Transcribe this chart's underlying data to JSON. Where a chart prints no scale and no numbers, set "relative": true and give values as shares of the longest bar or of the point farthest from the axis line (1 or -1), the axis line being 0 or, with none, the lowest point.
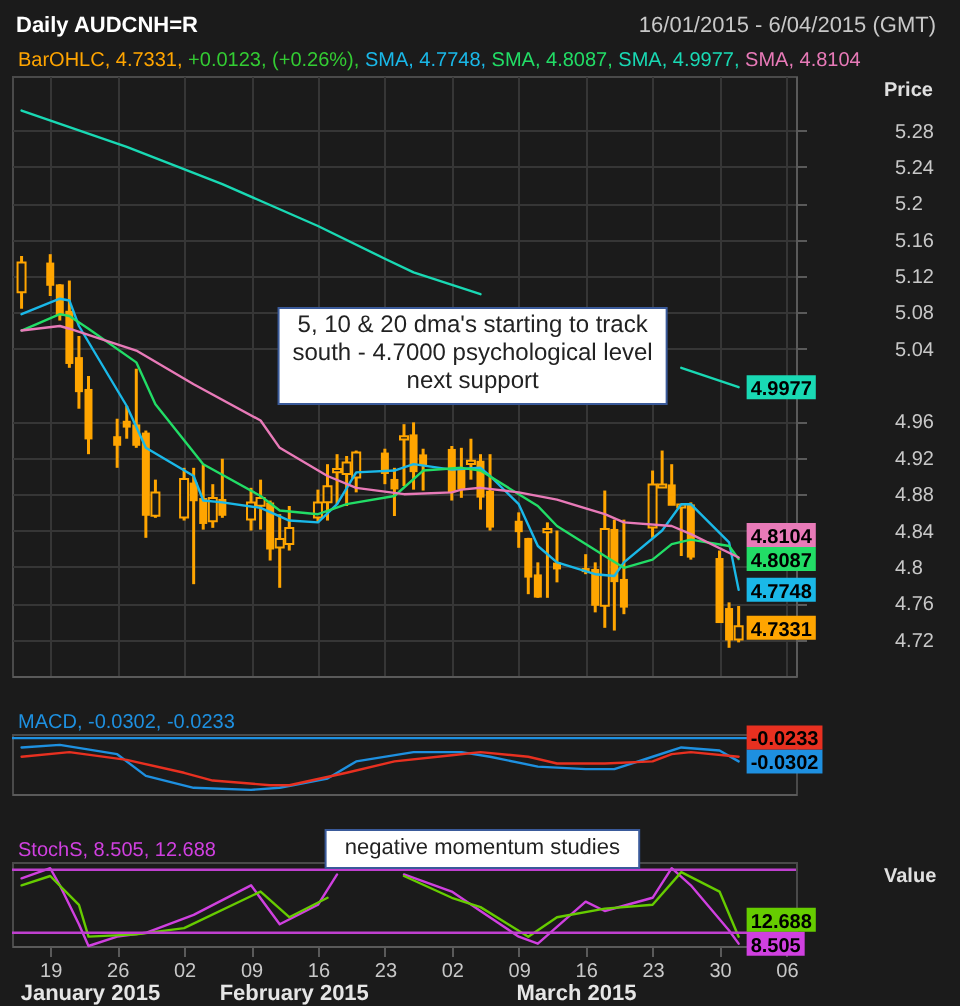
{
  "chart_data": [
    {
      "type": "candlestick",
      "title": "Daily AUDCNH=R",
      "subtitle": "16/01/2015 - 6/04/2015 (GMT)",
      "ylabel": "Price",
      "grid": true,
      "tick_labels": "y",
      "x": [
        "2015-01-16",
        "2015-01-19",
        "2015-01-20",
        "2015-01-21",
        "2015-01-22",
        "2015-01-23",
        "2015-01-26",
        "2015-01-27",
        "2015-01-28",
        "2015-01-29",
        "2015-01-30",
        "2015-02-02",
        "2015-02-03",
        "2015-02-04",
        "2015-02-05",
        "2015-02-06",
        "2015-02-09",
        "2015-02-10",
        "2015-02-11",
        "2015-02-12",
        "2015-02-13",
        "2015-02-16",
        "2015-02-17",
        "2015-02-18",
        "2015-02-19",
        "2015-02-20",
        "2015-02-23",
        "2015-02-24",
        "2015-02-25",
        "2015-02-26",
        "2015-02-27",
        "2015-03-02",
        "2015-03-03",
        "2015-03-04",
        "2015-03-05",
        "2015-03-06",
        "2015-03-09",
        "2015-03-10",
        "2015-03-11",
        "2015-03-12",
        "2015-03-13",
        "2015-03-16",
        "2015-03-17",
        "2015-03-18",
        "2015-03-19",
        "2015-03-20",
        "2015-03-23",
        "2015-03-24",
        "2015-03-25",
        "2015-03-26",
        "2015-03-27",
        "2015-03-30",
        "2015-03-31",
        "2015-04-01"
      ],
      "xlim": [
        "2015-01-15",
        "2015-04-07"
      ],
      "xticks": [
        {
          "value": "2015-01-19",
          "label": null
        },
        {
          "value": "2015-01-26",
          "label": null
        },
        {
          "value": "2015-02-02",
          "label": null
        },
        {
          "value": "2015-02-09",
          "label": null
        },
        {
          "value": "2015-02-16",
          "label": null
        },
        {
          "value": "2015-02-23",
          "label": null
        },
        {
          "value": "2015-03-02",
          "label": null
        },
        {
          "value": "2015-03-09",
          "label": null
        },
        {
          "value": "2015-03-16",
          "label": null
        },
        {
          "value": "2015-03-23",
          "label": null
        },
        {
          "value": "2015-03-30",
          "label": null
        },
        {
          "value": "2015-04-06",
          "label": null
        }
      ],
      "ylim": [
        4.68,
        5.34
      ],
      "yticks": [
        4.72,
        4.76,
        4.8,
        4.84,
        4.88,
        4.92,
        4.96,
        5.04,
        5.08,
        5.12,
        5.16,
        5.2,
        5.24,
        5.28
      ],
      "series": [
        {
          "type": "candlestick",
          "color": "#ffa500",
          "ohlc": [
            [
              5.104,
              5.142,
              5.084,
              5.133
            ],
            [
              5.133,
              5.144,
              5.098,
              5.111
            ],
            [
              5.109,
              5.111,
              5.071,
              5.078
            ],
            [
              5.08,
              5.115,
              5.019,
              5.025
            ],
            [
              5.029,
              5.054,
              4.974,
              4.994
            ],
            [
              4.994,
              5.01,
              4.924,
              4.942
            ],
            [
              4.942,
              4.963,
              4.909,
              4.935
            ],
            [
              4.959,
              4.977,
              4.941,
              4.955
            ],
            [
              4.955,
              5.018,
              4.931,
              4.935
            ],
            [
              4.946,
              4.95,
              4.832,
              4.858
            ],
            [
              4.858,
              4.896,
              4.854,
              4.88
            ],
            [
              4.856,
              4.909,
              4.851,
              4.895
            ],
            [
              4.891,
              4.909,
              4.781,
              4.874
            ],
            [
              4.874,
              4.913,
              4.841,
              4.849
            ],
            [
              4.852,
              4.891,
              4.843,
              4.874
            ],
            [
              4.873,
              4.919,
              4.854,
              4.858
            ],
            [
              4.854,
              4.887,
              4.84,
              4.869
            ],
            [
              4.869,
              4.896,
              4.841,
              4.874
            ],
            [
              4.869,
              4.873,
              4.807,
              4.821
            ],
            [
              4.823,
              4.858,
              4.777,
              4.829
            ],
            [
              4.827,
              4.867,
              4.818,
              4.841
            ],
            [
              4.856,
              4.885,
              4.849,
              4.869
            ],
            [
              4.873,
              4.913,
              4.851,
              4.887
            ],
            [
              4.906,
              4.924,
              4.869,
              4.906
            ],
            [
              4.904,
              4.922,
              4.867,
              4.913
            ],
            [
              4.9,
              4.928,
              4.882,
              4.924
            ],
            [
              4.924,
              4.93,
              4.891,
              4.904
            ],
            [
              4.895,
              4.909,
              4.856,
              4.887
            ],
            [
              4.942,
              4.957,
              4.889,
              4.942
            ],
            [
              4.944,
              4.959,
              4.885,
              4.906
            ],
            [
              4.922,
              4.93,
              4.884,
              4.913
            ],
            [
              4.928,
              4.933,
              4.873,
              4.884
            ],
            [
              4.906,
              4.931,
              4.876,
              4.887
            ],
            [
              4.915,
              4.941,
              4.896,
              4.915
            ],
            [
              4.915,
              4.924,
              4.863,
              4.878
            ],
            [
              4.882,
              4.924,
              4.84,
              4.845
            ],
            [
              4.849,
              4.86,
              4.821,
              4.84
            ],
            [
              4.83,
              4.832,
              4.77,
              4.79
            ],
            [
              4.79,
              4.805,
              4.766,
              4.768
            ],
            [
              4.84,
              4.849,
              4.766,
              4.84
            ],
            [
              4.803,
              4.84,
              4.783,
              4.799
            ],
            [
              4.797,
              4.814,
              4.792,
              4.796
            ],
            [
              4.796,
              4.805,
              4.75,
              4.759
            ],
            [
              4.759,
              4.884,
              4.733,
              4.84
            ],
            [
              4.84,
              4.852,
              4.73,
              4.785
            ],
            [
              4.785,
              4.852,
              4.748,
              4.757
            ],
            [
              4.845,
              4.906,
              4.832,
              4.889
            ],
            [
              4.889,
              4.928,
              4.887,
              4.889
            ],
            [
              4.889,
              4.913,
              4.869,
              4.869
            ],
            [
              4.867,
              4.869,
              4.812,
              4.867
            ],
            [
              4.867,
              4.871,
              4.808,
              4.812
            ],
            [
              4.808,
              4.818,
              4.739,
              4.74
            ],
            [
              4.753,
              4.761,
              4.711,
              4.7208
            ],
            [
              4.722,
              4.757,
              4.717,
              4.7331
            ]
          ]
        },
        {
          "type": "line",
          "color": "#1ab8e8",
          "x": [
            "2015-01-16",
            "2015-01-20",
            "2015-01-21",
            "2015-01-22",
            "2015-01-27",
            "2015-01-29",
            "2015-02-03",
            "2015-02-04",
            "2015-02-06",
            "2015-02-10",
            "2015-02-13",
            "2015-02-16",
            "2015-02-18",
            "2015-02-20",
            "2015-02-24",
            "2015-02-26",
            "2015-03-02",
            "2015-03-05",
            "2015-03-06",
            "2015-03-09",
            "2015-03-11",
            "2015-03-13",
            "2015-03-17",
            "2015-03-19",
            "2015-03-20",
            "2015-03-24",
            "2015-03-26",
            "2015-03-27",
            "2015-03-31",
            "2015-04-01"
          ],
          "values": [
            5.078,
            5.095,
            5.093,
            5.065,
            4.977,
            4.931,
            4.9,
            4.873,
            4.871,
            4.865,
            4.851,
            4.849,
            4.869,
            4.904,
            4.906,
            4.913,
            4.907,
            4.909,
            4.9,
            4.869,
            4.823,
            4.805,
            4.792,
            4.79,
            4.805,
            4.84,
            4.869,
            4.869,
            4.827,
            4.7748
          ]
        },
        {
          "type": "line",
          "color": "#22dd66",
          "x": [
            "2015-01-16",
            "2015-01-20",
            "2015-01-21",
            "2015-01-23",
            "2015-01-28",
            "2015-01-30",
            "2015-02-04",
            "2015-02-10",
            "2015-02-12",
            "2015-02-16",
            "2015-02-19",
            "2015-02-24",
            "2015-02-27",
            "2015-03-03",
            "2015-03-05",
            "2015-03-11",
            "2015-03-13",
            "2015-03-18",
            "2015-03-20",
            "2015-03-23",
            "2015-03-25",
            "2015-03-27",
            "2015-03-31",
            "2015-04-01"
          ],
          "values": [
            5.06,
            5.078,
            5.076,
            5.062,
            5.025,
            4.979,
            4.913,
            4.878,
            4.862,
            4.858,
            4.869,
            4.878,
            4.906,
            4.909,
            4.906,
            4.867,
            4.845,
            4.812,
            4.799,
            4.808,
            4.825,
            4.83,
            4.823,
            4.8087
          ]
        },
        {
          "type": "line",
          "color": "#19d9b4",
          "x": [
            "2015-01-16",
            "2015-01-27",
            "2015-02-06",
            "2015-02-16",
            "2015-02-23",
            "2015-02-26",
            "2015-03-05",
            "2015-03-13",
            "2015-03-26",
            "2015-04-01"
          ],
          "values": [
            5.302,
            5.262,
            5.221,
            5.175,
            5.139,
            5.124,
            5.1,
            null,
            5.019,
            4.9977
          ]
        },
        {
          "type": "line",
          "color": "#e87ab8",
          "x": [
            "2015-01-16",
            "2015-01-20",
            "2015-01-21",
            "2015-01-28",
            "2015-02-03",
            "2015-02-10",
            "2015-02-12",
            "2015-02-17",
            "2015-02-20",
            "2015-02-25",
            "2015-03-02",
            "2015-03-03",
            "2015-03-05",
            "2015-03-09",
            "2015-03-13",
            "2015-03-18",
            "2015-03-20",
            "2015-03-25",
            "2015-03-27",
            "2015-04-01"
          ],
          "values": [
            5.06,
            5.065,
            5.062,
            5.038,
            5.001,
            4.961,
            4.931,
            4.9,
            4.887,
            4.88,
            4.882,
            4.885,
            4.887,
            4.882,
            4.874,
            4.858,
            4.849,
            4.845,
            4.836,
            4.8104
          ]
        }
      ],
      "annotations": [
        "BarOHLC, 4.7331, +0.0123, (+0.26%), SMA, 4.7748, SMA, 4.8087, SMA, 4.9977, SMA, 4.8104",
        "5, 10 & 20 dma's starting to track south - 4.7000 psychological level next support",
        {
          "text": "4.7331",
          "x": "2015-04-01",
          "y": 4.7331
        },
        {
          "text": "4.7748",
          "x": "2015-04-01",
          "y": 4.7748
        },
        {
          "text": "4.8087",
          "x": "2015-04-01",
          "y": 4.8087
        },
        {
          "text": "4.9977",
          "x": "2015-04-01",
          "y": 4.9977
        },
        {
          "text": "4.8104",
          "x": "2015-04-01",
          "y": 4.8104
        }
      ]
    },
    {
      "type": "line",
      "relative": true,
      "title": "MACD, -0.0302, -0.0233",
      "tick_labels": false,
      "xlim": [
        "2015-01-15",
        "2015-04-07"
      ],
      "xticks": [
        {
          "value": "2015-01-19",
          "label": null
        },
        {
          "value": "2015-01-26",
          "label": null
        },
        {
          "value": "2015-02-02",
          "label": null
        },
        {
          "value": "2015-02-09",
          "label": null
        },
        {
          "value": "2015-02-16",
          "label": null
        },
        {
          "value": "2015-02-23",
          "label": null
        },
        {
          "value": "2015-03-02",
          "label": null
        },
        {
          "value": "2015-03-09",
          "label": null
        },
        {
          "value": "2015-03-16",
          "label": null
        },
        {
          "value": "2015-03-23",
          "label": null
        },
        {
          "value": "2015-03-30",
          "label": null
        },
        {
          "value": "2015-04-06",
          "label": null
        }
      ],
      "ref_lines": [
        {
          "axis": "y",
          "value": 0,
          "color": "#1e90e0"
        }
      ],
      "series": [
        {
          "color": "#1e90e0",
          "x": [
            "2015-01-16",
            "2015-01-20",
            "2015-01-26",
            "2015-01-29",
            "2015-02-03",
            "2015-02-09",
            "2015-02-12",
            "2015-02-17",
            "2015-02-20",
            "2015-02-26",
            "2015-03-03",
            "2015-03-06",
            "2015-03-11",
            "2015-03-16",
            "2015-03-19",
            "2015-03-23",
            "2015-03-26",
            "2015-03-30",
            "2015-04-01"
          ],
          "values": [
            -0.18,
            -0.13,
            -0.31,
            -0.73,
            -0.96,
            -1,
            -0.96,
            -0.78,
            -0.45,
            -0.27,
            -0.27,
            -0.36,
            -0.55,
            -0.6,
            -0.6,
            -0.36,
            -0.18,
            -0.24,
            -0.45
          ]
        },
        {
          "color": "#e83020",
          "x": [
            "2015-01-16",
            "2015-01-21",
            "2015-01-27",
            "2015-02-02",
            "2015-02-05",
            "2015-02-11",
            "2015-02-13",
            "2015-02-19",
            "2015-02-24",
            "2015-03-02",
            "2015-03-05",
            "2015-03-10",
            "2015-03-13",
            "2015-03-18",
            "2015-03-23",
            "2015-03-25",
            "2015-03-27",
            "2015-04-01"
          ],
          "values": [
            -0.36,
            -0.27,
            -0.42,
            -0.67,
            -0.82,
            -0.91,
            -0.91,
            -0.67,
            -0.45,
            -0.33,
            -0.27,
            -0.36,
            -0.49,
            -0.49,
            -0.45,
            -0.31,
            -0.27,
            -0.36
          ]
        }
      ],
      "annotations": [
        {
          "text": "-0.0302",
          "x": "2015-04-01",
          "y": -0.45
        },
        {
          "text": "-0.0233",
          "x": "2015-04-01",
          "y": -0.36
        }
      ]
    },
    {
      "type": "line",
      "relative": true,
      "title": "StochS, 8.505, 12.688",
      "tick_labels": "x",
      "ylabel": "Value",
      "xlim": [
        "2015-01-15",
        "2015-04-07"
      ],
      "xticks": [
        {
          "value": "2015-01-19",
          "label": "19"
        },
        {
          "value": "2015-01-26",
          "label": "26"
        },
        {
          "value": "2015-02-02",
          "label": "02"
        },
        {
          "value": "2015-02-09",
          "label": "09"
        },
        {
          "value": "2015-02-16",
          "label": "16"
        },
        {
          "value": "2015-02-23",
          "label": "23"
        },
        {
          "value": "2015-03-02",
          "label": "02"
        },
        {
          "value": "2015-03-09",
          "label": "09"
        },
        {
          "value": "2015-03-16",
          "label": "16"
        },
        {
          "value": "2015-03-23",
          "label": "23"
        },
        {
          "value": "2015-03-30",
          "label": "30"
        },
        {
          "value": "2015-04-06",
          "label": "06"
        }
      ],
      "ref_lines": [
        {
          "axis": "y",
          "value": 0.98,
          "color": "#c040d0"
        },
        {
          "axis": "y",
          "value": 0.17,
          "color": "#c040d0"
        }
      ],
      "series": [
        {
          "color": "#d040e0",
          "x": [
            "2015-01-16",
            "2015-01-19",
            "2015-01-20",
            "2015-01-22",
            "2015-01-23",
            "2015-01-26",
            "2015-01-29",
            "2015-02-03",
            "2015-02-09",
            "2015-02-12",
            "2015-02-16",
            "2015-02-18",
            "2015-02-23",
            "2015-02-25",
            "2015-03-02",
            "2015-03-05",
            "2015-03-09",
            "2015-03-11",
            "2015-03-16",
            "2015-03-18",
            "2015-03-23",
            "2015-03-25",
            "2015-03-27",
            "2015-03-31",
            "2015-04-01"
          ],
          "values": [
            0.87,
            1,
            0.78,
            0.28,
            0,
            0.12,
            0.17,
            0.4,
            0.78,
            0.28,
            0.53,
            0.92,
            null,
            0.92,
            0.7,
            0.45,
            0.12,
            0.03,
            0.57,
            0.45,
            0.62,
            1,
            0.78,
            0.2,
            0.03
          ]
        },
        {
          "color": "#66cc00",
          "x": [
            "2015-01-16",
            "2015-01-19",
            "2015-01-22",
            "2015-01-23",
            "2015-01-28",
            "2015-02-02",
            "2015-02-10",
            "2015-02-13",
            "2015-02-17",
            "2015-02-23",
            "2015-02-25",
            "2015-03-02",
            "2015-03-05",
            "2015-03-10",
            "2015-03-13",
            "2015-03-18",
            "2015-03-23",
            "2015-03-26",
            "2015-03-30",
            "2015-04-01"
          ],
          "values": [
            0.78,
            0.9,
            0.53,
            0.12,
            0.15,
            0.23,
            0.7,
            0.37,
            0.62,
            null,
            0.9,
            0.62,
            0.5,
            0.12,
            0.37,
            0.48,
            0.53,
            0.95,
            0.7,
            0.12
          ]
        }
      ],
      "annotations": [
        "negative momentum studies",
        "January 2015",
        "February 2015",
        "March 2015",
        {
          "text": "8.505",
          "x": "2015-04-01",
          "y": 0.03
        },
        {
          "text": "12.688",
          "x": "2015-04-01",
          "y": 0.12
        }
      ]
    }
  ]
}
